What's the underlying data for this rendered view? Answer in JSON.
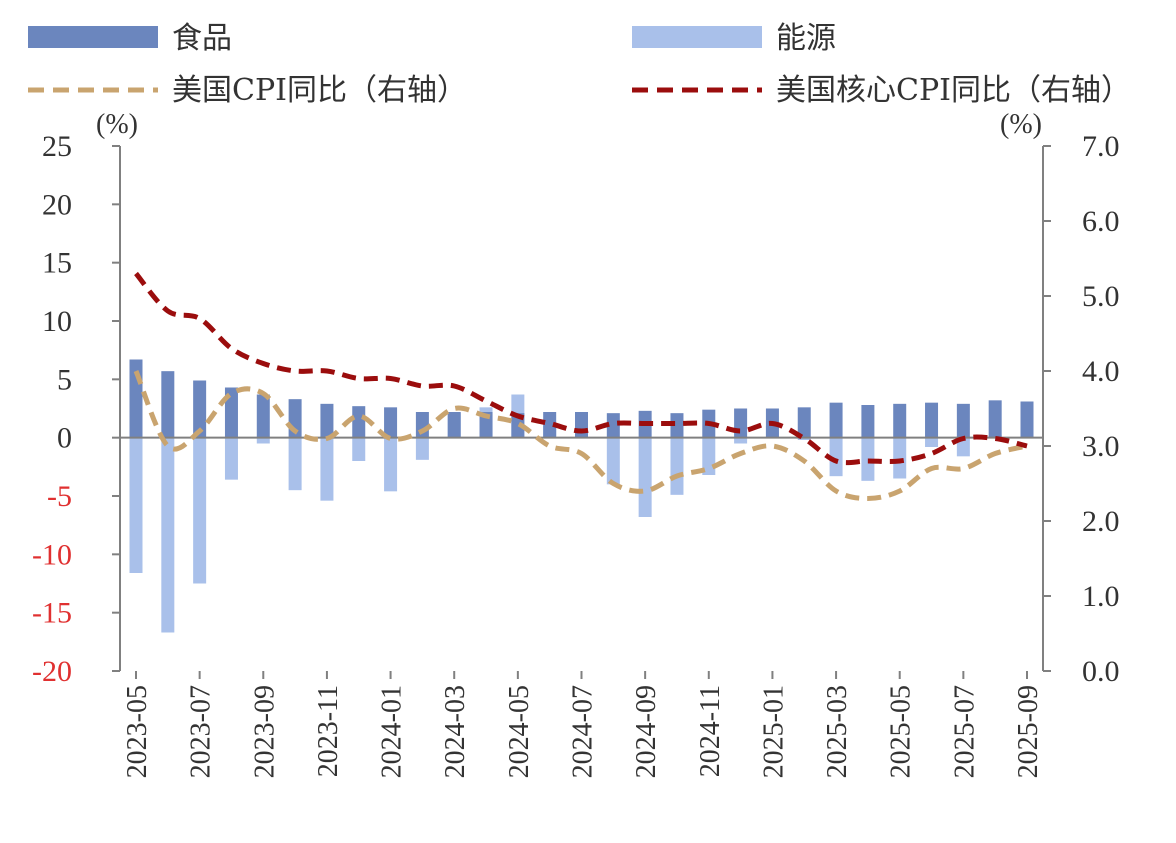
{
  "colors": {
    "food": "#6b86be",
    "energy": "#a9c0ea",
    "cpi": "#c9a46f",
    "core_cpi": "#9b0d0d",
    "axis": "#808080",
    "negative_tick": "#e03030",
    "text": "#333333"
  },
  "chart_data": {
    "type": "bar",
    "legend": {
      "food": "食品",
      "energy": "能源",
      "cpi": "美国CPI同比（右轴）",
      "core_cpi": "美国核心CPI同比（右轴）"
    },
    "left_axis": {
      "unit": "(%)",
      "ylim": [
        -20,
        25
      ],
      "ticks": [
        25,
        20,
        15,
        10,
        5,
        0,
        -5,
        -10,
        -15,
        -20
      ],
      "tick_labels": [
        "25",
        "20",
        "15",
        "10",
        "5",
        "0",
        "-5",
        "-10",
        "-15",
        "-20"
      ]
    },
    "right_axis": {
      "unit": "(%)",
      "ylim": [
        0,
        7
      ],
      "ticks": [
        7,
        6,
        5,
        4,
        3,
        2,
        1,
        0
      ],
      "tick_labels": [
        "7.0",
        "6.0",
        "5.0",
        "4.0",
        "3.0",
        "2.0",
        "1.0",
        "0.0"
      ]
    },
    "categories": [
      "2023-05",
      "2023-06",
      "2023-07",
      "2023-08",
      "2023-09",
      "2023-10",
      "2023-11",
      "2023-12",
      "2024-01",
      "2024-02",
      "2024-03",
      "2024-04",
      "2024-05",
      "2024-06",
      "2024-07",
      "2024-08",
      "2024-09",
      "2024-10",
      "2024-11",
      "2024-12",
      "2025-01",
      "2025-02",
      "2025-03",
      "2025-04",
      "2025-05",
      "2025-06",
      "2025-07",
      "2025-08",
      "2025-09"
    ],
    "x_tick_labels": [
      "2023-05",
      "2023-07",
      "2023-09",
      "2023-11",
      "2024-01",
      "2024-03",
      "2024-05",
      "2024-07",
      "2024-09",
      "2024-11",
      "2025-01",
      "2025-03",
      "2025-05",
      "2025-07",
      "2025-09"
    ],
    "series": [
      {
        "name": "食品",
        "type": "bar",
        "axis": "left",
        "values": [
          6.7,
          5.7,
          4.9,
          4.3,
          3.7,
          3.3,
          2.9,
          2.7,
          2.6,
          2.2,
          2.2,
          2.2,
          2.1,
          2.2,
          2.2,
          2.1,
          2.3,
          2.1,
          2.4,
          2.5,
          2.5,
          2.6,
          3.0,
          2.8,
          2.9,
          3.0,
          2.9,
          3.2,
          3.1
        ]
      },
      {
        "name": "能源",
        "type": "bar",
        "axis": "left",
        "values": [
          -11.6,
          -16.7,
          -12.5,
          -3.6,
          -0.5,
          -4.5,
          -5.4,
          -2.0,
          -4.6,
          -1.9,
          2.1,
          2.6,
          3.7,
          1.0,
          1.1,
          -4.0,
          -6.8,
          -4.9,
          -3.2,
          -0.5,
          1.0,
          -0.2,
          -3.3,
          -3.7,
          -3.5,
          -0.8,
          -1.6,
          0.2,
          2.8
        ]
      },
      {
        "name": "美国CPI同比（右轴）",
        "type": "line",
        "axis": "right",
        "style": "dashed",
        "values": [
          4.0,
          3.0,
          3.2,
          3.7,
          3.7,
          3.2,
          3.1,
          3.4,
          3.1,
          3.2,
          3.5,
          3.4,
          3.3,
          3.0,
          2.9,
          2.5,
          2.4,
          2.6,
          2.7,
          2.9,
          3.0,
          2.8,
          2.4,
          2.3,
          2.4,
          2.7,
          2.7,
          2.9,
          3.0
        ]
      },
      {
        "name": "美国核心CPI同比（右轴）",
        "type": "line",
        "axis": "right",
        "style": "dashed",
        "values": [
          5.3,
          4.8,
          4.7,
          4.3,
          4.1,
          4.0,
          4.0,
          3.9,
          3.9,
          3.8,
          3.8,
          3.6,
          3.4,
          3.3,
          3.2,
          3.3,
          3.3,
          3.3,
          3.3,
          3.2,
          3.3,
          3.1,
          2.8,
          2.8,
          2.8,
          2.9,
          3.1,
          3.1,
          3.0
        ]
      }
    ]
  }
}
